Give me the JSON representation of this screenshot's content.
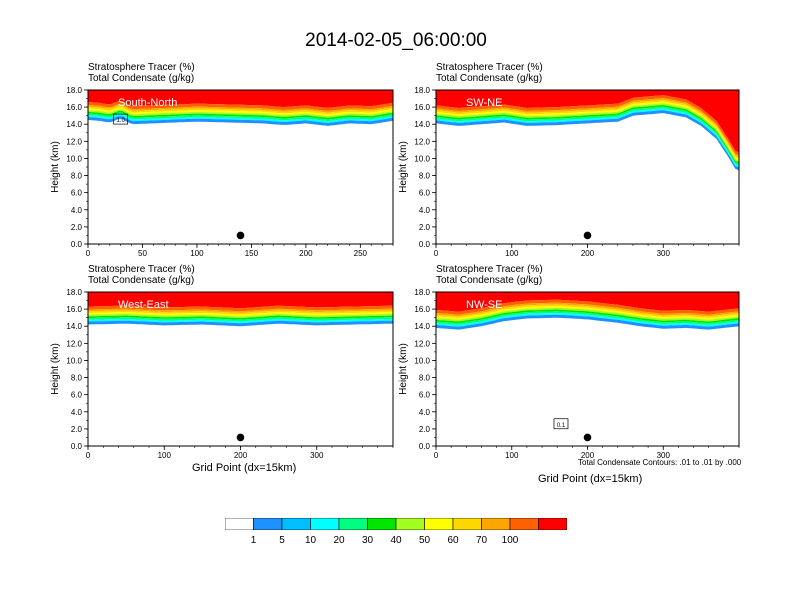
{
  "title": "2014-02-05_06:00:00",
  "colors": {
    "bands": [
      "#ffffff",
      "#1e90ff",
      "#00bfff",
      "#00ffff",
      "#00ff80",
      "#00e600",
      "#a0ff20",
      "#ffff00",
      "#ffd700",
      "#ffa500",
      "#ff6000",
      "#ff0000"
    ]
  },
  "colorbar": {
    "labels": [
      "1",
      "5",
      "10",
      "20",
      "30",
      "40",
      "50",
      "60",
      "70",
      "100"
    ]
  },
  "note": "Total Condensate Contours: .01 to .01 by .000",
  "chart_data": [
    {
      "type": "heatmap",
      "panel_label": "South-North",
      "subtitle_line1": "Stratosphere Tracer   (%)",
      "subtitle_line2": "Total Condensate   (g/kg)",
      "ylabel": "Height (km)",
      "xlabel": "",
      "xlim": [
        0,
        280
      ],
      "ylim": [
        0,
        18
      ],
      "xticks": [
        "0",
        "50",
        "100",
        "150",
        "200",
        "250"
      ],
      "yticks": [
        "0.0",
        "2.0",
        "4.0",
        "6.0",
        "8.0",
        "10.0",
        "12.0",
        "14.0",
        "16.0",
        "18.0"
      ],
      "contour_label": "1.0",
      "tropopause_km": [
        [
          0,
          15.7
        ],
        [
          10,
          15.6
        ],
        [
          20,
          15.4
        ],
        [
          30,
          15.9
        ],
        [
          40,
          15.2
        ],
        [
          60,
          15.3
        ],
        [
          80,
          15.4
        ],
        [
          100,
          15.5
        ],
        [
          130,
          15.4
        ],
        [
          160,
          15.3
        ],
        [
          180,
          15.1
        ],
        [
          200,
          15.3
        ],
        [
          220,
          15.0
        ],
        [
          240,
          15.3
        ],
        [
          260,
          15.2
        ],
        [
          280,
          15.6
        ]
      ],
      "marker": [
        140,
        1.0
      ]
    },
    {
      "type": "heatmap",
      "panel_label": "SW-NE",
      "subtitle_line1": "Stratosphere Tracer   (%)",
      "subtitle_line2": "Total Condensate   (g/kg)",
      "ylabel": "Height (km)",
      "xlabel": "",
      "xlim": [
        0,
        400
      ],
      "ylim": [
        0,
        18
      ],
      "xticks": [
        "0",
        "100",
        "200",
        "300"
      ],
      "yticks": [
        "0.0",
        "2.0",
        "4.0",
        "6.0",
        "8.0",
        "10.0",
        "12.0",
        "14.0",
        "16.0",
        "18.0"
      ],
      "contour_label": "",
      "tropopause_km": [
        [
          0,
          15.3
        ],
        [
          30,
          15.0
        ],
        [
          60,
          15.2
        ],
        [
          90,
          15.4
        ],
        [
          120,
          15.0
        ],
        [
          160,
          15.1
        ],
        [
          200,
          15.3
        ],
        [
          240,
          15.5
        ],
        [
          260,
          16.2
        ],
        [
          300,
          16.5
        ],
        [
          330,
          16.0
        ],
        [
          350,
          15.0
        ],
        [
          370,
          13.5
        ],
        [
          385,
          11.5
        ],
        [
          395,
          10.0
        ],
        [
          400,
          9.8
        ]
      ],
      "marker": [
        200,
        1.0
      ]
    },
    {
      "type": "heatmap",
      "panel_label": "West-East",
      "subtitle_line1": "Stratosphere Tracer   (%)",
      "subtitle_line2": "Total Condensate   (g/kg)",
      "ylabel": "Height (km)",
      "xlabel": "Grid Point (dx=15km)",
      "xlim": [
        0,
        400
      ],
      "ylim": [
        0,
        18
      ],
      "xticks": [
        "0",
        "100",
        "200",
        "300"
      ],
      "yticks": [
        "0.0",
        "2.0",
        "4.0",
        "6.0",
        "8.0",
        "10.0",
        "12.0",
        "14.0",
        "16.0",
        "18.0"
      ],
      "contour_label": "",
      "tropopause_km": [
        [
          0,
          15.4
        ],
        [
          50,
          15.5
        ],
        [
          100,
          15.3
        ],
        [
          150,
          15.4
        ],
        [
          200,
          15.2
        ],
        [
          250,
          15.5
        ],
        [
          300,
          15.3
        ],
        [
          350,
          15.4
        ],
        [
          400,
          15.5
        ]
      ],
      "marker": [
        200,
        1.0
      ]
    },
    {
      "type": "heatmap",
      "panel_label": "NW-SE",
      "subtitle_line1": "Stratosphere Tracer   (%)",
      "subtitle_line2": "Total Condensate   (g/kg)",
      "ylabel": "Height (km)",
      "xlabel": "Grid Point (dx=15km)",
      "xlim": [
        0,
        400
      ],
      "ylim": [
        0,
        18
      ],
      "xticks": [
        "0",
        "100",
        "200",
        "300"
      ],
      "yticks": [
        "0.0",
        "2.0",
        "4.0",
        "6.0",
        "8.0",
        "10.0",
        "12.0",
        "14.0",
        "16.0",
        "18.0"
      ],
      "contour_label": "0.1",
      "tropopause_km": [
        [
          0,
          15.0
        ],
        [
          30,
          14.8
        ],
        [
          60,
          15.2
        ],
        [
          90,
          15.8
        ],
        [
          120,
          16.1
        ],
        [
          160,
          16.2
        ],
        [
          200,
          16.0
        ],
        [
          240,
          15.6
        ],
        [
          270,
          15.2
        ],
        [
          300,
          14.9
        ],
        [
          330,
          15.0
        ],
        [
          360,
          14.8
        ],
        [
          400,
          15.2
        ]
      ],
      "marker": [
        200,
        1.0
      ]
    }
  ]
}
